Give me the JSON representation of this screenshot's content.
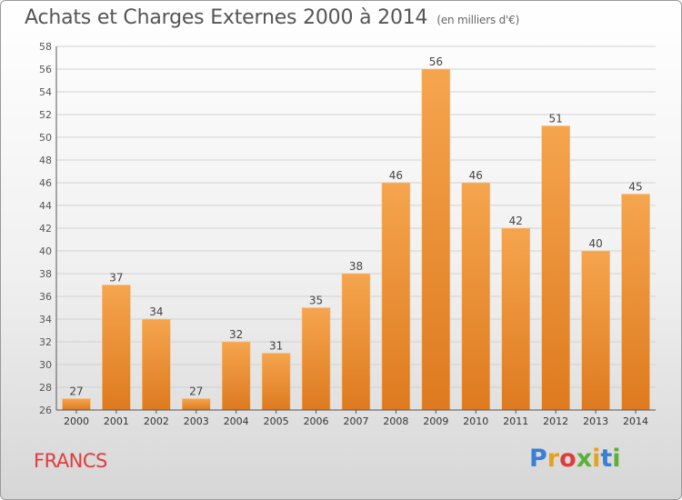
{
  "title": "Achats et Charges Externes 2000 à 2014",
  "unit": "(en milliers d'€)",
  "commune": "FRANCS",
  "logo": {
    "text": "Proxiti",
    "colors": [
      "#3a7fd6",
      "#e6a21d",
      "#e03c3c",
      "#5bb038",
      "#e6a21d",
      "#3a7fd6",
      "#5bb038"
    ]
  },
  "colors": {
    "bar_top": "#f5a54e",
    "bar_bottom": "#de7a1f",
    "grid": "#d2d2d2",
    "axis": "#555555"
  },
  "chart_data": {
    "type": "bar",
    "categories": [
      "2000",
      "2001",
      "2002",
      "2003",
      "2004",
      "2005",
      "2006",
      "2007",
      "2008",
      "2009",
      "2010",
      "2011",
      "2012",
      "2013",
      "2014"
    ],
    "values": [
      27,
      37,
      34,
      27,
      32,
      31,
      35,
      38,
      46,
      56,
      46,
      42,
      51,
      40,
      45
    ],
    "ylim": [
      26,
      58
    ],
    "yticks": [
      26,
      28,
      30,
      32,
      34,
      36,
      38,
      40,
      42,
      44,
      46,
      48,
      50,
      52,
      54,
      56,
      58
    ],
    "grid": true,
    "title": "Achats et Charges Externes 2000 à 2014",
    "xlabel": "",
    "ylabel": ""
  }
}
